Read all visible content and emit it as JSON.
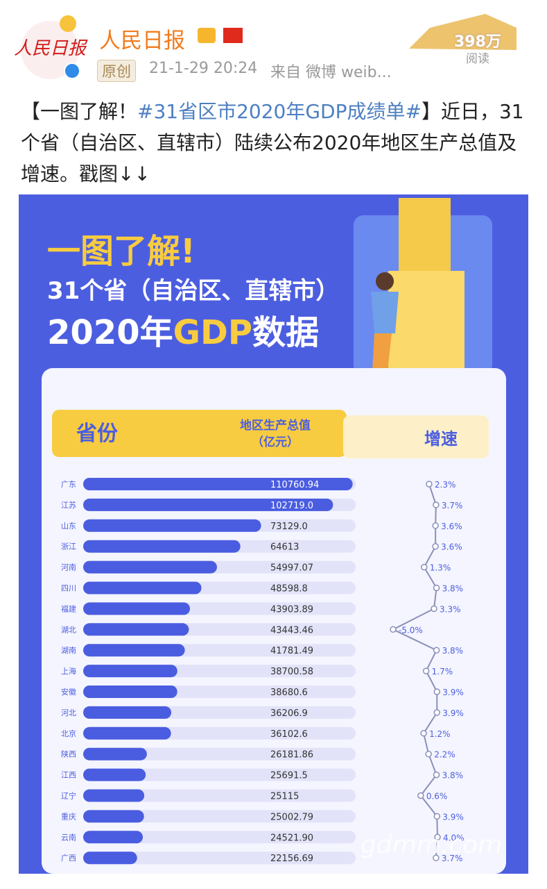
{
  "post": {
    "author": "人民日报",
    "tag": "原创",
    "time": "21-1-29 20:24",
    "source": "来自 微博 weib...",
    "reads": "398万",
    "reads_label": "阅读",
    "text": [
      "【一图了解！",
      "#31省区市2020年GDP成绩单#",
      "】近日，31个省（自治区、直辖市）陆续公布2020年地区生产总值及增速。戳图↓↓"
    ]
  },
  "chart_data": {
    "type": "bar",
    "title": "一图了解!",
    "subtitle": "31个省（自治区、直辖市）",
    "heading": [
      "2020年",
      "GDP",
      "数据"
    ],
    "columns": [
      "省份",
      "（亿元）"
    ],
    "categories": [
      "广东",
      "江苏",
      "山东",
      "浙江",
      "河南",
      "四川",
      "福建",
      "湖北",
      "湖南",
      "上海",
      "安徽",
      "河北",
      "北京",
      "陕西",
      "江西",
      "辽宁",
      "重庆",
      "云南",
      "广西"
    ],
    "series": [
      {
        "name": "地区生产总值",
        "color": "#4a5de0",
        "values": [
          110760.94,
          102719.0,
          73129.0,
          64613,
          54997.07,
          48598.8,
          43903.89,
          43443.46,
          41781.49,
          38700.58,
          38680.6,
          36206.9,
          36102.6,
          26181.86,
          25691.5,
          25115,
          25002.79,
          24521.9,
          22156.69
        ],
        "value_labels": [
          "110760.94",
          "102719.0",
          "73129.0",
          "64613",
          "54997.07",
          "48598.8",
          "43903.89",
          "43443.46",
          "41781.49",
          "38700.58",
          "38680.6",
          "36206.9",
          "36102.6",
          "26181.86",
          "25691.5",
          "25115",
          "25002.79",
          "24521.90",
          "22156.69"
        ]
      },
      {
        "name": "增速",
        "type": "line",
        "axis": "x2",
        "color": "#8a90b8",
        "values": [
          2.3,
          3.7,
          3.6,
          3.6,
          1.3,
          3.8,
          3.3,
          -5.0,
          3.8,
          1.7,
          3.9,
          3.9,
          1.2,
          2.2,
          3.8,
          0.6,
          3.9,
          4.0,
          3.7
        ],
        "value_labels": [
          "2.3%",
          "3.7%",
          "3.6%",
          "3.6%",
          "1.3%",
          "3.8%",
          "3.3%",
          "-5.0%",
          "3.8%",
          "1.7%",
          "3.9%",
          "3.9%",
          "1.2%",
          "2.2%",
          "3.8%",
          "0.6%",
          "3.9%",
          "4.0%",
          "3.7%"
        ]
      }
    ],
    "xlim": [
      0,
      112000
    ],
    "x2lim": [
      -5.0,
      4.0
    ]
  },
  "watermark": "gdmm.com"
}
